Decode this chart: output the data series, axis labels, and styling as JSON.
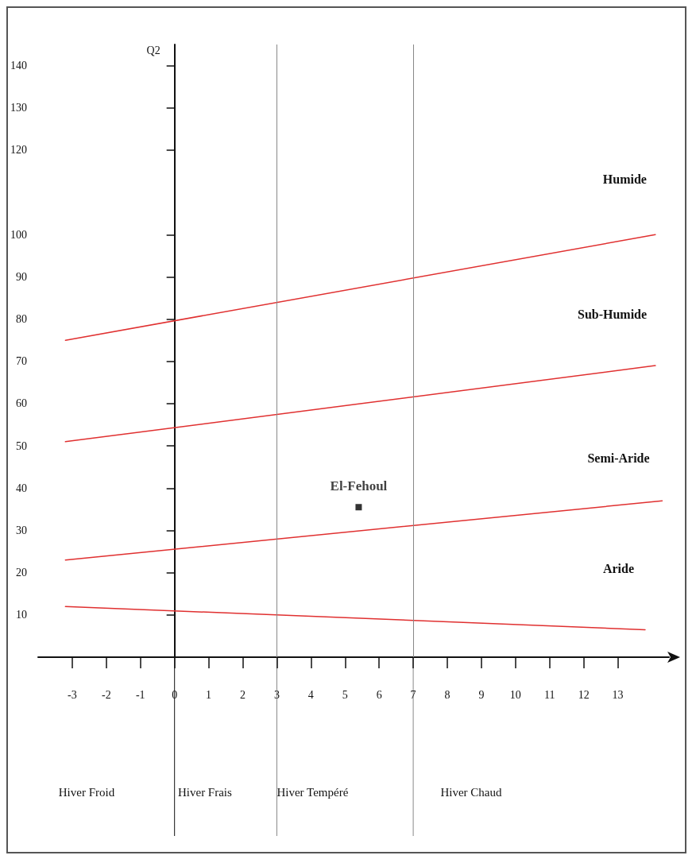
{
  "chart_data": {
    "type": "line",
    "ylabel": "Q2",
    "xlim": [
      -4,
      14.5
    ],
    "xticks": [
      -3,
      -2,
      -1,
      0,
      1,
      2,
      3,
      4,
      5,
      6,
      7,
      8,
      9,
      10,
      11,
      12,
      13
    ],
    "ylim": [
      0,
      145
    ],
    "yticks": [
      10,
      20,
      30,
      40,
      50,
      60,
      70,
      80,
      90,
      100,
      120,
      130,
      140
    ],
    "series": [
      {
        "color": "#e03030",
        "x": [
          -3.2,
          14.1
        ],
        "values": [
          75,
          100
        ]
      },
      {
        "color": "#e03030",
        "x": [
          -3.2,
          14.1
        ],
        "values": [
          51,
          69
        ]
      },
      {
        "color": "#e03030",
        "x": [
          -3.2,
          14.3
        ],
        "values": [
          23,
          37
        ]
      },
      {
        "color": "#e03030",
        "x": [
          -3.2,
          13.8
        ],
        "values": [
          12,
          6.5
        ]
      },
      {
        "type": "scatter",
        "name": "El-Fehoul",
        "color": "#000000",
        "marker": "square",
        "x": [
          5.4
        ],
        "values": [
          35.5
        ]
      }
    ],
    "ref_lines": [
      {
        "axis": "x",
        "value": 3,
        "color": "#888888"
      },
      {
        "axis": "x",
        "value": 7,
        "color": "#888888"
      }
    ],
    "annotations": [
      "Humide",
      "Sub-Humide",
      "Semi-Aride",
      "Aride",
      "Hiver Froid",
      "Hiver Frais",
      "Hiver Tempéré",
      "Hiver Chaud"
    ],
    "grid": false,
    "legend": false,
    "marker": "none",
    "line_style": "solid"
  }
}
